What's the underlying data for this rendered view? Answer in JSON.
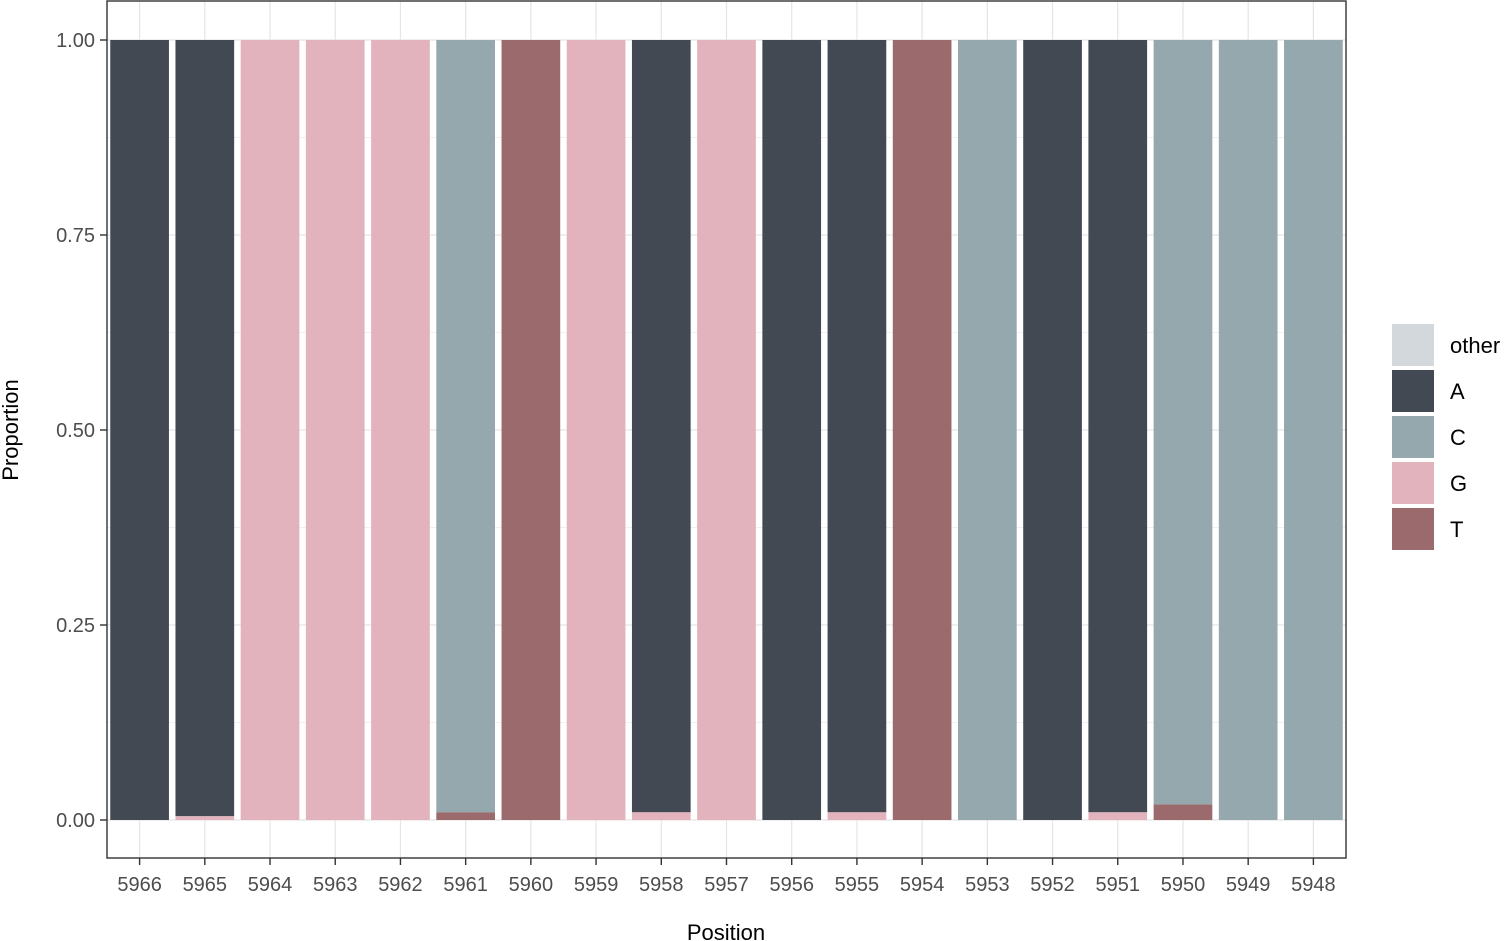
{
  "chart_data": {
    "type": "bar",
    "stacked": true,
    "xlabel": "Position",
    "ylabel": "Proportion",
    "ylim": [
      0,
      1
    ],
    "y_ticks": [
      "0.00",
      "0.25",
      "0.50",
      "0.75",
      "1.00"
    ],
    "grid": true,
    "legend_position": "right",
    "categories": [
      "5966",
      "5965",
      "5964",
      "5963",
      "5962",
      "5961",
      "5960",
      "5959",
      "5958",
      "5957",
      "5956",
      "5955",
      "5954",
      "5953",
      "5952",
      "5951",
      "5950",
      "5949",
      "5948"
    ],
    "series": [
      {
        "name": "other",
        "color": "#d3d8dc",
        "values": [
          0,
          0,
          0,
          0,
          0,
          0,
          0,
          0,
          0,
          0,
          0,
          0,
          0,
          0,
          0,
          0,
          0,
          0,
          0
        ]
      },
      {
        "name": "A",
        "color": "#424953",
        "values": [
          1,
          0.995,
          0,
          0,
          0,
          0,
          0,
          0,
          0.99,
          0,
          1,
          0.99,
          0,
          0,
          1,
          0.99,
          0,
          0,
          0
        ]
      },
      {
        "name": "C",
        "color": "#94a8ad",
        "values": [
          0,
          0,
          0,
          0,
          0,
          0.99,
          0,
          0,
          0,
          0,
          0,
          0,
          0,
          1,
          0,
          0,
          0.98,
          1,
          1
        ]
      },
      {
        "name": "G",
        "color": "#e2b3bc",
        "values": [
          0,
          0.005,
          1,
          1,
          1,
          0,
          0,
          1,
          0.01,
          1,
          0,
          0.01,
          0,
          0,
          0,
          0.01,
          0,
          0,
          0
        ]
      },
      {
        "name": "T",
        "color": "#9b6a6c",
        "values": [
          0,
          0,
          0,
          0,
          0,
          0.01,
          1,
          0,
          0,
          0,
          0,
          0,
          1,
          0,
          0,
          0,
          0.02,
          0,
          0
        ]
      }
    ]
  }
}
